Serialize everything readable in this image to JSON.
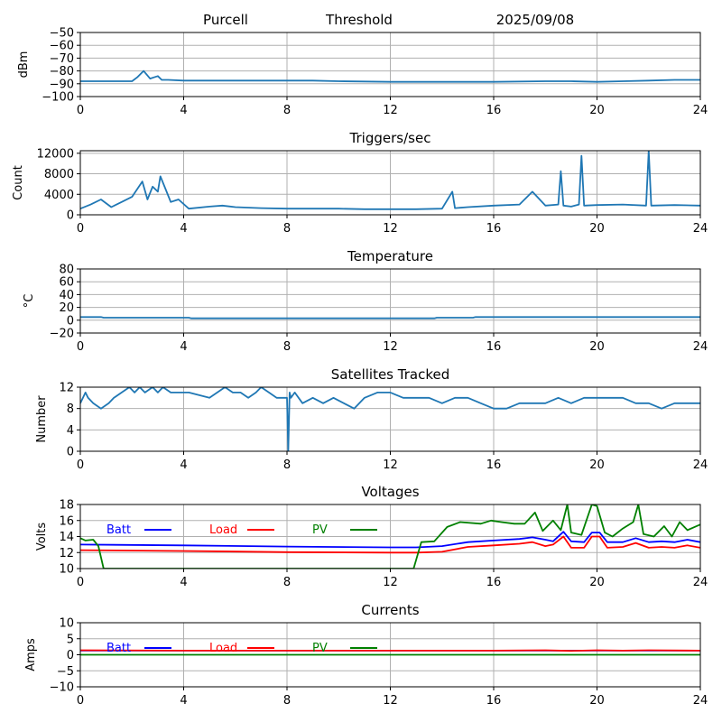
{
  "header": {
    "station": "Purcell",
    "mode": "Threshold",
    "date": "2025/09/08"
  },
  "chart_data": [
    {
      "type": "line",
      "title": "",
      "ylabel": "dBm",
      "xlim": [
        0,
        24
      ],
      "ylim": [
        -100,
        -50
      ],
      "xticks": [
        0,
        4,
        8,
        12,
        16,
        20,
        24
      ],
      "yticks": [
        -100,
        -90,
        -80,
        -70,
        -60,
        -50
      ],
      "grid": true,
      "series": [
        {
          "color": "#1f77b4",
          "x": [
            0,
            1,
            2,
            2.2,
            2.45,
            2.7,
            2.85,
            3.0,
            3.15,
            3.4,
            4,
            5,
            6,
            8,
            9,
            10,
            12,
            14,
            16,
            18,
            19,
            20,
            21,
            22,
            23,
            24
          ],
          "y": [
            -88,
            -88,
            -88,
            -85,
            -80,
            -86,
            -85,
            -84,
            -87,
            -87,
            -87.5,
            -87.5,
            -87.5,
            -87.5,
            -87.5,
            -88,
            -88.5,
            -88.5,
            -88.5,
            -88,
            -88,
            -88.5,
            -88,
            -87.5,
            -87,
            -87
          ]
        }
      ]
    },
    {
      "type": "line",
      "title": "Triggers/sec",
      "ylabel": "Count",
      "xlim": [
        0,
        24
      ],
      "ylim": [
        0,
        12500
      ],
      "xticks": [
        0,
        4,
        8,
        12,
        16,
        20,
        24
      ],
      "yticks": [
        0,
        4000,
        8000,
        12000
      ],
      "grid": true,
      "series": [
        {
          "color": "#1f77b4",
          "x": [
            0,
            0.4,
            0.8,
            1.2,
            1.6,
            2.0,
            2.2,
            2.4,
            2.6,
            2.8,
            3.0,
            3.1,
            3.3,
            3.5,
            3.8,
            4.2,
            5,
            5.5,
            6,
            7,
            8,
            9,
            10,
            11,
            12,
            13,
            14,
            14.4,
            14.5,
            15,
            16,
            17,
            17.5,
            18,
            18.5,
            18.6,
            18.7,
            19,
            19.3,
            19.4,
            19.5,
            20,
            21,
            21.9,
            22.0,
            22.1,
            23,
            24
          ],
          "y": [
            1200,
            2000,
            3000,
            1500,
            2500,
            3500,
            5000,
            6500,
            3000,
            5500,
            4500,
            7500,
            5000,
            2500,
            3000,
            1200,
            1600,
            1800,
            1500,
            1300,
            1200,
            1200,
            1200,
            1100,
            1100,
            1100,
            1200,
            4500,
            1300,
            1500,
            1800,
            2000,
            4500,
            1800,
            2000,
            8500,
            1800,
            1600,
            2000,
            11500,
            1800,
            1900,
            2000,
            1800,
            12500,
            1800,
            1900,
            1800
          ]
        }
      ]
    },
    {
      "type": "line",
      "title": "Temperature",
      "ylabel": "°C",
      "xlim": [
        0,
        24
      ],
      "ylim": [
        -20,
        80
      ],
      "xticks": [
        0,
        4,
        8,
        12,
        16,
        20,
        24
      ],
      "yticks": [
        -20,
        0,
        20,
        40,
        60,
        80
      ],
      "grid": true,
      "series": [
        {
          "color": "#1f77b4",
          "x": [
            0,
            0.8,
            0.9,
            4.2,
            4.3,
            8,
            12,
            13.7,
            13.8,
            15.2,
            15.3,
            20,
            24
          ],
          "y": [
            5,
            5,
            4,
            4,
            3,
            3,
            3,
            3,
            4,
            4,
            5,
            5,
            5
          ]
        }
      ]
    },
    {
      "type": "line",
      "title": "Satellites Tracked",
      "ylabel": "Number",
      "xlim": [
        0,
        24
      ],
      "ylim": [
        0,
        12
      ],
      "xticks": [
        0,
        4,
        8,
        12,
        16,
        20,
        24
      ],
      "yticks": [
        0,
        4,
        8,
        12
      ],
      "grid": true,
      "series": [
        {
          "color": "#1f77b4",
          "x": [
            0,
            0.2,
            0.3,
            0.5,
            0.8,
            1.1,
            1.3,
            1.6,
            1.9,
            2.1,
            2.3,
            2.5,
            2.8,
            3.0,
            3.2,
            3.5,
            3.8,
            4.2,
            5.0,
            5.3,
            5.6,
            5.9,
            6.2,
            6.5,
            6.8,
            7.0,
            7.3,
            7.6,
            8.0,
            8.05,
            8.1,
            8.15,
            8.3,
            8.6,
            9.0,
            9.4,
            9.8,
            10.2,
            10.6,
            11.0,
            11.5,
            12.0,
            12.5,
            13.0,
            13.5,
            14.0,
            14.5,
            15.0,
            15.5,
            16.0,
            16.5,
            17.0,
            17.5,
            18.0,
            18.5,
            19.0,
            19.5,
            20.0,
            20.5,
            21.0,
            21.5,
            22.0,
            22.5,
            23.0,
            23.5,
            24.0
          ],
          "y": [
            9,
            11,
            10,
            9,
            8,
            9,
            10,
            11,
            12,
            11,
            12,
            11,
            12,
            11,
            12,
            11,
            11,
            11,
            10,
            11,
            12,
            11,
            11,
            10,
            11,
            12,
            11,
            10,
            10,
            0,
            11,
            10,
            11,
            9,
            10,
            9,
            10,
            9,
            8,
            10,
            11,
            11,
            10,
            10,
            10,
            9,
            10,
            10,
            9,
            8,
            8,
            9,
            9,
            9,
            10,
            9,
            10,
            10,
            10,
            10,
            9,
            9,
            8,
            9,
            9,
            9
          ]
        }
      ]
    },
    {
      "type": "line",
      "title": "Voltages",
      "ylabel": "Volts",
      "xlim": [
        0,
        24
      ],
      "ylim": [
        10,
        18
      ],
      "xticks": [
        0,
        4,
        8,
        12,
        16,
        20,
        24
      ],
      "yticks": [
        10,
        12,
        14,
        16,
        18
      ],
      "grid": true,
      "series": [
        {
          "name": "Batt",
          "color": "#0000ff",
          "x": [
            0,
            4,
            8,
            12,
            13,
            14,
            15,
            16,
            17,
            17.5,
            18,
            18.3,
            18.7,
            19,
            19.5,
            19.8,
            20.1,
            20.4,
            21,
            21.5,
            22,
            22.5,
            23,
            23.5,
            24
          ],
          "y": [
            13.0,
            12.9,
            12.75,
            12.65,
            12.65,
            12.8,
            13.3,
            13.5,
            13.7,
            13.9,
            13.6,
            13.4,
            14.6,
            13.4,
            13.3,
            14.5,
            14.5,
            13.3,
            13.3,
            13.8,
            13.3,
            13.4,
            13.3,
            13.6,
            13.3
          ]
        },
        {
          "name": "Load",
          "color": "#ff0000",
          "x": [
            0,
            4,
            8,
            12,
            13,
            14,
            15,
            16,
            17,
            17.5,
            18,
            18.3,
            18.7,
            19,
            19.5,
            19.8,
            20.1,
            20.4,
            21,
            21.5,
            22,
            22.5,
            23,
            23.5,
            24
          ],
          "y": [
            12.3,
            12.2,
            12.05,
            12.0,
            12.0,
            12.1,
            12.7,
            12.9,
            13.1,
            13.3,
            12.8,
            13.0,
            14.0,
            12.6,
            12.6,
            14.0,
            14.0,
            12.6,
            12.7,
            13.2,
            12.6,
            12.7,
            12.6,
            12.9,
            12.6
          ]
        },
        {
          "name": "PV",
          "color": "#008000",
          "x": [
            0,
            0.2,
            0.5,
            0.7,
            0.9,
            1.0,
            12.7,
            12.9,
            13.2,
            13.7,
            14.2,
            14.7,
            15.5,
            15.9,
            16.3,
            16.8,
            17.2,
            17.6,
            17.9,
            18.3,
            18.6,
            18.85,
            19.0,
            19.4,
            19.8,
            20.0,
            20.3,
            20.6,
            21.0,
            21.4,
            21.6,
            21.8,
            22.2,
            22.6,
            22.9,
            23.2,
            23.5,
            24
          ],
          "y": [
            13.8,
            13.5,
            13.6,
            12.8,
            10.0,
            10.0,
            10.0,
            10.0,
            13.3,
            13.4,
            15.2,
            15.8,
            15.6,
            16.0,
            15.8,
            15.6,
            15.6,
            17.0,
            14.7,
            16.0,
            14.8,
            18.0,
            14.5,
            14.2,
            18.0,
            17.8,
            14.5,
            14.0,
            15.0,
            15.8,
            18.0,
            14.3,
            14.0,
            15.3,
            14.0,
            15.8,
            14.8,
            15.5
          ]
        }
      ],
      "legend": [
        "Batt",
        "Load",
        "PV"
      ]
    },
    {
      "type": "line",
      "title": "Currents",
      "ylabel": "Amps",
      "xlim": [
        0,
        24
      ],
      "ylim": [
        -10,
        10
      ],
      "xticks": [
        0,
        4,
        8,
        12,
        16,
        20,
        24
      ],
      "yticks": [
        -10,
        -5,
        0,
        5,
        10
      ],
      "grid": true,
      "series": [
        {
          "name": "Batt",
          "color": "#0000ff",
          "x": [
            0,
            24
          ],
          "y": [
            1.3,
            1.3
          ]
        },
        {
          "name": "Load",
          "color": "#ff0000",
          "x": [
            0,
            4,
            8,
            12,
            16,
            18,
            19,
            20,
            21,
            22,
            24
          ],
          "y": [
            1.4,
            1.3,
            1.3,
            1.3,
            1.3,
            1.4,
            1.2,
            1.4,
            1.3,
            1.4,
            1.3
          ]
        },
        {
          "name": "PV",
          "color": "#008000",
          "x": [
            0,
            24
          ],
          "y": [
            0,
            0
          ]
        }
      ],
      "legend": [
        "Batt",
        "Load",
        "PV"
      ]
    }
  ]
}
